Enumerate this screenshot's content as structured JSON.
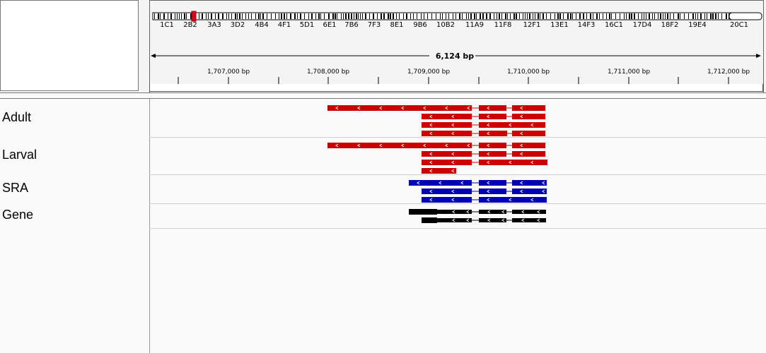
{
  "ideogram": {
    "bands": [
      "1C1",
      "2B2",
      "3A3",
      "3D2",
      "4B4",
      "4F1",
      "5D1",
      "6E1",
      "7B6",
      "7F3",
      "8E1",
      "9B6",
      "10B2",
      "11A9",
      "11F8",
      "12F1",
      "13E1",
      "14F3",
      "16C1",
      "17D4",
      "18F2",
      "19E4",
      "20C1"
    ],
    "highlight_color": "#e0001b"
  },
  "ruler": {
    "span_label": "6,124 bp",
    "ticks": [
      "1,707,000 bp",
      "1,708,000 bp",
      "1,709,000 bp",
      "1,710,000 bp",
      "1,711,000 bp",
      "1,712,000 bp"
    ]
  },
  "tracks": [
    {
      "label": "Adult",
      "color": "#cc0000"
    },
    {
      "label": "Larval",
      "color": "#cc0000"
    },
    {
      "label": "SRA",
      "color": "#0000b4"
    },
    {
      "label": "Gene",
      "color": "#000000"
    }
  ]
}
